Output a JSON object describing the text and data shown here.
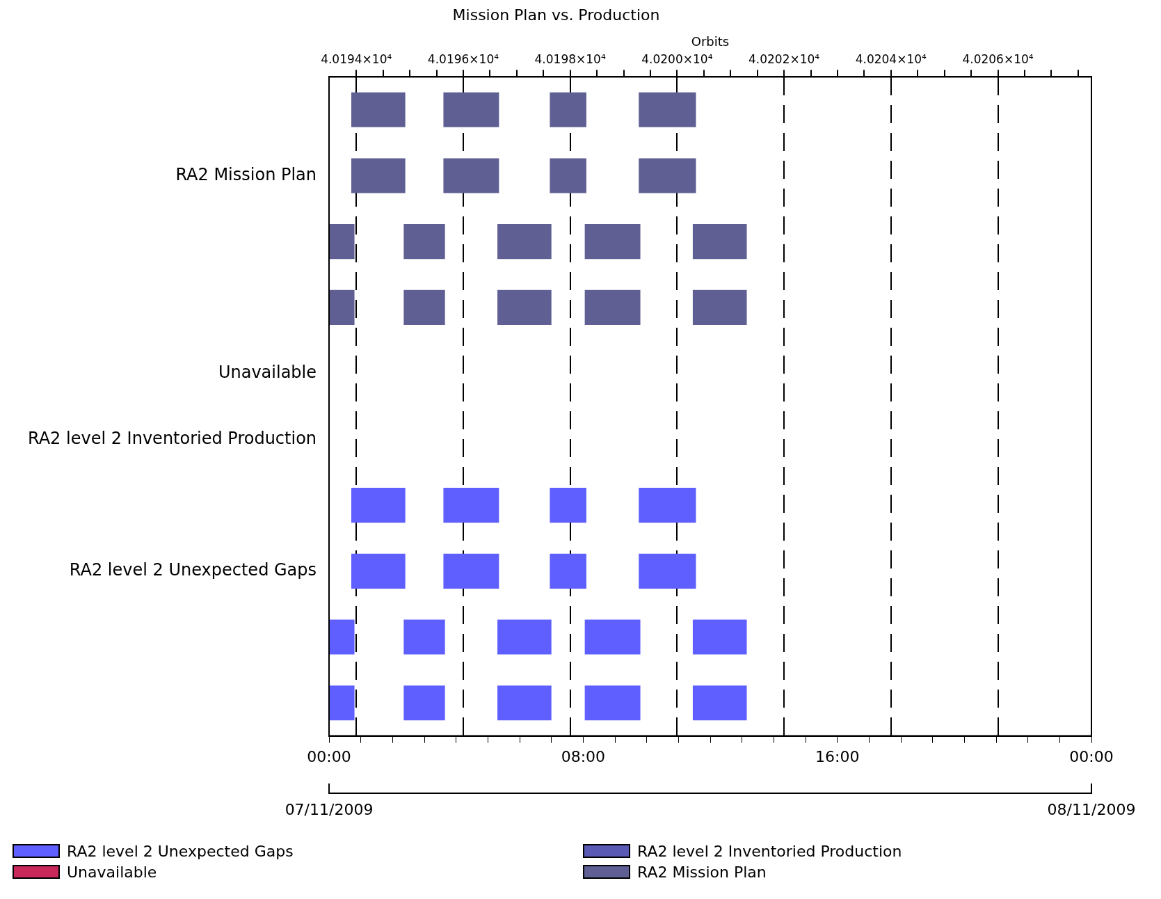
{
  "chart_data": {
    "type": "bar",
    "orientation": "horizontal",
    "title": "Mission Plan vs. Production",
    "x2label": "Orbits",
    "categories": [
      null,
      "RA2 Mission Plan",
      null,
      null,
      "Unavailable",
      "RA2 level 2 Inventoried Production",
      null,
      "RA2 level 2 Unexpected Gaps",
      null,
      null
    ],
    "xlim": [
      0,
      24
    ],
    "xticks": [
      {
        "value": 0,
        "label": "00:00"
      },
      {
        "value": 1,
        "label": null
      },
      {
        "value": 2,
        "label": null
      },
      {
        "value": 3,
        "label": null
      },
      {
        "value": 4,
        "label": null
      },
      {
        "value": 5,
        "label": null
      },
      {
        "value": 6,
        "label": null
      },
      {
        "value": 7,
        "label": null
      },
      {
        "value": 8,
        "label": "08:00"
      },
      {
        "value": 9,
        "label": null
      },
      {
        "value": 10,
        "label": null
      },
      {
        "value": 11,
        "label": null
      },
      {
        "value": 12,
        "label": null
      },
      {
        "value": 13,
        "label": null
      },
      {
        "value": 14,
        "label": null
      },
      {
        "value": 15,
        "label": null
      },
      {
        "value": 16,
        "label": "16:00"
      },
      {
        "value": 17,
        "label": null
      },
      {
        "value": 18,
        "label": null
      },
      {
        "value": 19,
        "label": null
      },
      {
        "value": 20,
        "label": null
      },
      {
        "value": 21,
        "label": null
      },
      {
        "value": 22,
        "label": null
      },
      {
        "value": 23,
        "label": null
      },
      {
        "value": 24,
        "label": "00:00"
      }
    ],
    "x2lim": [
      40193.49,
      40207.75
    ],
    "x2ticks": [
      {
        "value": 40194,
        "label": "4.0194×10⁴"
      },
      {
        "value": 40194.5,
        "label": null
      },
      {
        "value": 40195,
        "label": null
      },
      {
        "value": 40195.5,
        "label": null
      },
      {
        "value": 40196,
        "label": "4.0196×10⁴"
      },
      {
        "value": 40196.5,
        "label": null
      },
      {
        "value": 40197,
        "label": null
      },
      {
        "value": 40197.5,
        "label": null
      },
      {
        "value": 40198,
        "label": "4.0198×10⁴"
      },
      {
        "value": 40198.5,
        "label": null
      },
      {
        "value": 40199,
        "label": null
      },
      {
        "value": 40199.5,
        "label": null
      },
      {
        "value": 40200,
        "label": "4.0200×10⁴"
      },
      {
        "value": 40200.5,
        "label": null
      },
      {
        "value": 40201,
        "label": null
      },
      {
        "value": 40201.5,
        "label": null
      },
      {
        "value": 40202,
        "label": "4.0202×10⁴"
      },
      {
        "value": 40202.5,
        "label": null
      },
      {
        "value": 40203,
        "label": null
      },
      {
        "value": 40203.5,
        "label": null
      },
      {
        "value": 40204,
        "label": "4.0204×10⁴"
      },
      {
        "value": 40204.5,
        "label": null
      },
      {
        "value": 40205,
        "label": null
      },
      {
        "value": 40205.5,
        "label": null
      },
      {
        "value": 40206,
        "label": "4.0206×10⁴"
      },
      {
        "value": 40206.5,
        "label": null
      },
      {
        "value": 40207,
        "label": null
      },
      {
        "value": 40207.5,
        "label": null
      }
    ],
    "grid": "x",
    "legend": "bottom",
    "annotations": [
      "07/11/2009",
      "08/11/2009"
    ],
    "series": [
      {
        "name": "RA2 level 2 Unexpected Gaps",
        "color": "#5f5fff",
        "base": [
          null,
          null,
          null,
          null,
          null,
          null,
          0.7,
          0.7,
          0,
          0
        ],
        "values": [
          null,
          null,
          null,
          null,
          null,
          null,
          1.7,
          1.7,
          0.8,
          0.8
        ]
      },
      {
        "color": "#5f5fff",
        "base": [
          null,
          null,
          null,
          null,
          null,
          null,
          3.6,
          3.6,
          2.35,
          2.35
        ],
        "values": [
          null,
          null,
          null,
          null,
          null,
          null,
          1.75,
          1.75,
          1.3,
          1.3
        ]
      },
      {
        "color": "#5f5fff",
        "base": [
          null,
          null,
          null,
          null,
          null,
          null,
          6.95,
          6.95,
          5.3,
          5.3
        ],
        "values": [
          null,
          null,
          null,
          null,
          null,
          null,
          1.15,
          1.15,
          1.7,
          1.7
        ]
      },
      {
        "color": "#5f5fff",
        "base": [
          null,
          null,
          null,
          null,
          null,
          null,
          9.75,
          9.75,
          8.05,
          8.05
        ],
        "values": [
          null,
          null,
          null,
          null,
          null,
          null,
          1.8,
          1.8,
          1.75,
          1.75
        ]
      },
      {
        "color": "#5f5fff",
        "base": [
          null,
          null,
          null,
          null,
          null,
          null,
          null,
          null,
          11.45,
          11.45
        ],
        "values": [
          null,
          null,
          null,
          null,
          null,
          null,
          null,
          null,
          1.7,
          1.7
        ]
      },
      {
        "name": "Unavailable",
        "color": "#c8285a",
        "values": [
          null,
          null,
          null,
          null,
          null,
          null,
          null,
          null,
          null,
          null
        ]
      },
      {
        "name": "RA2 level 2 Inventoried Production",
        "color": "#5a5ab4",
        "values": [
          null,
          null,
          null,
          null,
          null,
          null,
          null,
          null,
          null,
          null
        ]
      },
      {
        "name": "RA2 Mission Plan",
        "color": "#5f5f94",
        "base": [
          0.7,
          0.7,
          0,
          0,
          null,
          null,
          null,
          null,
          null,
          null
        ],
        "values": [
          1.7,
          1.7,
          0.8,
          0.8,
          null,
          null,
          null,
          null,
          null,
          null
        ]
      },
      {
        "color": "#5f5f94",
        "base": [
          3.6,
          3.6,
          2.35,
          2.35,
          null,
          null,
          null,
          null,
          null,
          null
        ],
        "values": [
          1.75,
          1.75,
          1.3,
          1.3,
          null,
          null,
          null,
          null,
          null,
          null
        ]
      },
      {
        "color": "#5f5f94",
        "base": [
          6.95,
          6.95,
          5.3,
          5.3,
          null,
          null,
          null,
          null,
          null,
          null
        ],
        "values": [
          1.15,
          1.15,
          1.7,
          1.7,
          null,
          null,
          null,
          null,
          null,
          null
        ]
      },
      {
        "color": "#5f5f94",
        "base": [
          9.75,
          9.75,
          8.05,
          8.05,
          null,
          null,
          null,
          null,
          null,
          null
        ],
        "values": [
          1.8,
          1.8,
          1.75,
          1.75,
          null,
          null,
          null,
          null,
          null,
          null
        ]
      },
      {
        "color": "#5f5f94",
        "base": [
          null,
          null,
          11.45,
          11.45,
          null,
          null,
          null,
          null,
          null,
          null
        ],
        "values": [
          null,
          null,
          1.7,
          1.7,
          null,
          null,
          null,
          null,
          null,
          null
        ]
      }
    ]
  }
}
